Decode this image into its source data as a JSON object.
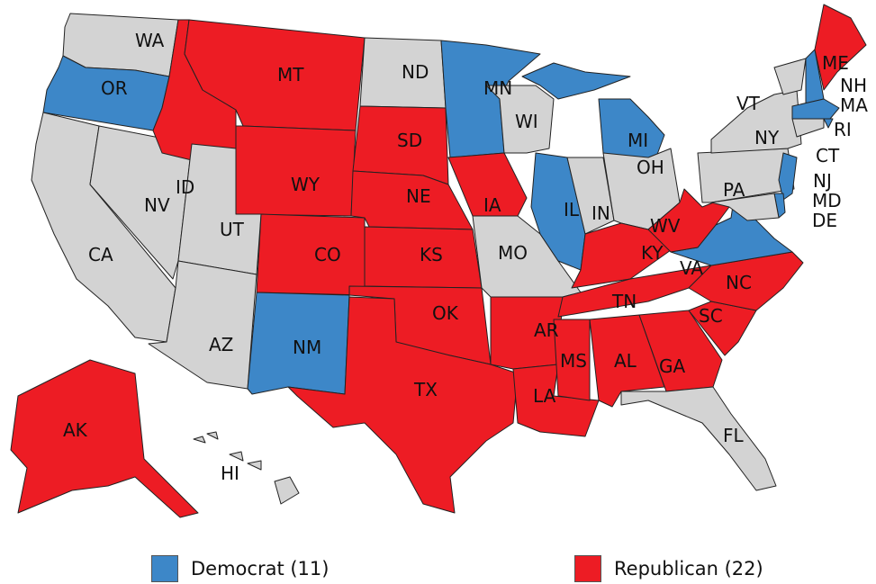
{
  "colors": {
    "democrat": "#3d87c8",
    "republican": "#ed1c24",
    "other": "#d3d3d3"
  },
  "states": [
    {
      "abbr": "WA",
      "party": "other"
    },
    {
      "abbr": "OR",
      "party": "democrat"
    },
    {
      "abbr": "CA",
      "party": "other"
    },
    {
      "abbr": "NV",
      "party": "other"
    },
    {
      "abbr": "ID",
      "party": "republican"
    },
    {
      "abbr": "MT",
      "party": "republican"
    },
    {
      "abbr": "WY",
      "party": "republican"
    },
    {
      "abbr": "UT",
      "party": "other"
    },
    {
      "abbr": "AZ",
      "party": "other"
    },
    {
      "abbr": "CO",
      "party": "republican"
    },
    {
      "abbr": "NM",
      "party": "democrat"
    },
    {
      "abbr": "ND",
      "party": "other"
    },
    {
      "abbr": "SD",
      "party": "republican"
    },
    {
      "abbr": "NE",
      "party": "republican"
    },
    {
      "abbr": "KS",
      "party": "republican"
    },
    {
      "abbr": "OK",
      "party": "republican"
    },
    {
      "abbr": "TX",
      "party": "republican"
    },
    {
      "abbr": "MN",
      "party": "democrat"
    },
    {
      "abbr": "IA",
      "party": "republican"
    },
    {
      "abbr": "MO",
      "party": "other"
    },
    {
      "abbr": "AR",
      "party": "republican"
    },
    {
      "abbr": "LA",
      "party": "republican"
    },
    {
      "abbr": "WI",
      "party": "other"
    },
    {
      "abbr": "IL",
      "party": "democrat"
    },
    {
      "abbr": "MI",
      "party": "democrat"
    },
    {
      "abbr": "IN",
      "party": "other"
    },
    {
      "abbr": "OH",
      "party": "other"
    },
    {
      "abbr": "KY",
      "party": "republican"
    },
    {
      "abbr": "TN",
      "party": "republican"
    },
    {
      "abbr": "MS",
      "party": "republican"
    },
    {
      "abbr": "AL",
      "party": "republican"
    },
    {
      "abbr": "GA",
      "party": "republican"
    },
    {
      "abbr": "FL",
      "party": "other"
    },
    {
      "abbr": "SC",
      "party": "republican"
    },
    {
      "abbr": "NC",
      "party": "republican"
    },
    {
      "abbr": "VA",
      "party": "democrat"
    },
    {
      "abbr": "WV",
      "party": "republican"
    },
    {
      "abbr": "PA",
      "party": "other"
    },
    {
      "abbr": "NY",
      "party": "other"
    },
    {
      "abbr": "VT",
      "party": "other"
    },
    {
      "abbr": "NH",
      "party": "democrat"
    },
    {
      "abbr": "ME",
      "party": "republican"
    },
    {
      "abbr": "MA",
      "party": "democrat"
    },
    {
      "abbr": "RI",
      "party": "democrat"
    },
    {
      "abbr": "CT",
      "party": "other"
    },
    {
      "abbr": "NJ",
      "party": "democrat"
    },
    {
      "abbr": "DE",
      "party": "democrat"
    },
    {
      "abbr": "MD",
      "party": "other"
    },
    {
      "abbr": "AK",
      "party": "republican"
    },
    {
      "abbr": "HI",
      "party": "other"
    }
  ],
  "legend": {
    "democrat": "Democrat (11)",
    "republican": "Republican (22)"
  }
}
